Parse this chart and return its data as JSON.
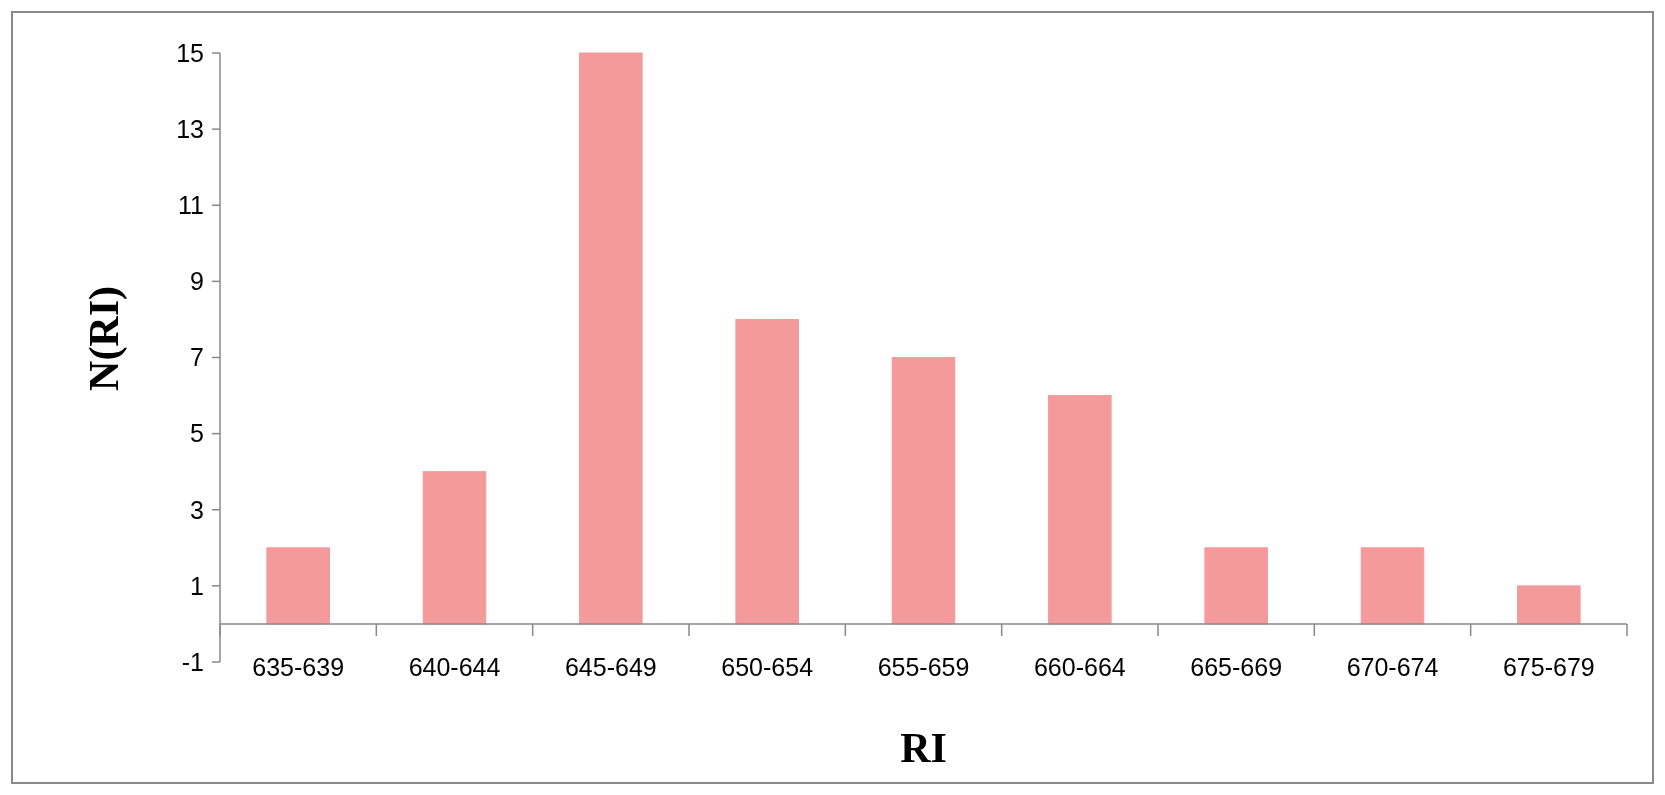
{
  "chart_data": {
    "type": "bar",
    "xlabel": "RI",
    "ylabel": "N(RI)",
    "categories": [
      "635-639",
      "640-644",
      "645-649",
      "650-654",
      "655-659",
      "660-664",
      "665-669",
      "670-674",
      "675-679"
    ],
    "values": [
      2,
      4,
      15,
      8,
      7,
      6,
      2,
      2,
      1
    ],
    "color": "#f49a9a",
    "ylim": [
      -1,
      15
    ],
    "yticks": [
      -1,
      1,
      3,
      5,
      7,
      9,
      11,
      13,
      15
    ],
    "grid": false
  }
}
